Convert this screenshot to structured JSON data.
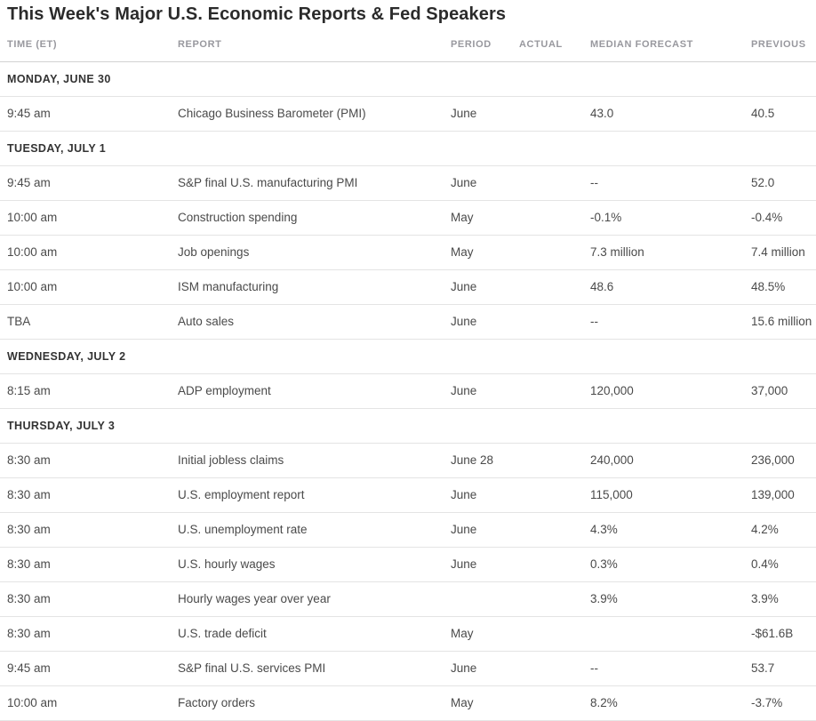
{
  "page": {
    "title": "This Week's Major U.S. Economic Reports & Fed Speakers"
  },
  "colors": {
    "title_text": "#2b2b2b",
    "column_header_text": "#98989e",
    "day_header_text": "#333333",
    "cell_text": "#4a4a4a",
    "header_rule": "#d2d2d2",
    "row_rule": "#e4e4e4",
    "background": "#ffffff"
  },
  "table": {
    "columns": [
      {
        "key": "time",
        "label": "TIME (ET)"
      },
      {
        "key": "report",
        "label": "REPORT"
      },
      {
        "key": "period",
        "label": "PERIOD"
      },
      {
        "key": "actual",
        "label": "ACTUAL"
      },
      {
        "key": "median_forecast",
        "label": "MEDIAN FORECAST"
      },
      {
        "key": "previous",
        "label": "PREVIOUS"
      }
    ],
    "rows": [
      {
        "type": "day",
        "label": "MONDAY, JUNE 30"
      },
      {
        "type": "report",
        "time": "9:45 am",
        "report": "Chicago Business Barometer (PMI)",
        "period": "June",
        "actual": "",
        "median_forecast": "43.0",
        "previous": "40.5"
      },
      {
        "type": "day",
        "label": "TUESDAY, JULY 1"
      },
      {
        "type": "report",
        "time": "9:45 am",
        "report": "S&P final U.S. manufacturing PMI",
        "period": "June",
        "actual": "",
        "median_forecast": "--",
        "previous": "52.0"
      },
      {
        "type": "report",
        "time": "10:00 am",
        "report": "Construction spending",
        "period": "May",
        "actual": "",
        "median_forecast": "-0.1%",
        "previous": "-0.4%"
      },
      {
        "type": "report",
        "time": "10:00 am",
        "report": "Job openings",
        "period": "May",
        "actual": "",
        "median_forecast": "7.3 million",
        "previous": "7.4 million"
      },
      {
        "type": "report",
        "time": "10:00 am",
        "report": "ISM manufacturing",
        "period": "June",
        "actual": "",
        "median_forecast": "48.6",
        "previous": "48.5%"
      },
      {
        "type": "report",
        "time": "TBA",
        "report": "Auto sales",
        "period": "June",
        "actual": "",
        "median_forecast": "--",
        "previous": "15.6 million"
      },
      {
        "type": "day",
        "label": "WEDNESDAY, JULY 2"
      },
      {
        "type": "report",
        "time": "8:15 am",
        "report": "ADP employment",
        "period": "June",
        "actual": "",
        "median_forecast": "120,000",
        "previous": "37,000"
      },
      {
        "type": "day",
        "label": "THURSDAY, JULY 3"
      },
      {
        "type": "report",
        "time": "8:30 am",
        "report": "Initial jobless claims",
        "period": "June 28",
        "actual": "",
        "median_forecast": "240,000",
        "previous": "236,000"
      },
      {
        "type": "report",
        "time": "8:30 am",
        "report": "U.S. employment report",
        "period": "June",
        "actual": "",
        "median_forecast": "115,000",
        "previous": "139,000"
      },
      {
        "type": "report",
        "time": "8:30 am",
        "report": "U.S. unemployment rate",
        "period": "June",
        "actual": "",
        "median_forecast": "4.3%",
        "previous": "4.2%"
      },
      {
        "type": "report",
        "time": "8:30 am",
        "report": "U.S. hourly wages",
        "period": "June",
        "actual": "",
        "median_forecast": "0.3%",
        "previous": "0.4%"
      },
      {
        "type": "report",
        "time": "8:30 am",
        "report": "Hourly wages year over year",
        "period": "",
        "actual": "",
        "median_forecast": "3.9%",
        "previous": "3.9%"
      },
      {
        "type": "report",
        "time": "8:30 am",
        "report": "U.S. trade deficit",
        "period": "May",
        "actual": "",
        "median_forecast": "",
        "previous": "-$61.6B"
      },
      {
        "type": "report",
        "time": "9:45 am",
        "report": "S&P final U.S. services PMI",
        "period": "June",
        "actual": "",
        "median_forecast": "--",
        "previous": "53.7"
      },
      {
        "type": "report",
        "time": "10:00 am",
        "report": "Factory orders",
        "period": "May",
        "actual": "",
        "median_forecast": "8.2%",
        "previous": "-3.7%"
      }
    ]
  }
}
